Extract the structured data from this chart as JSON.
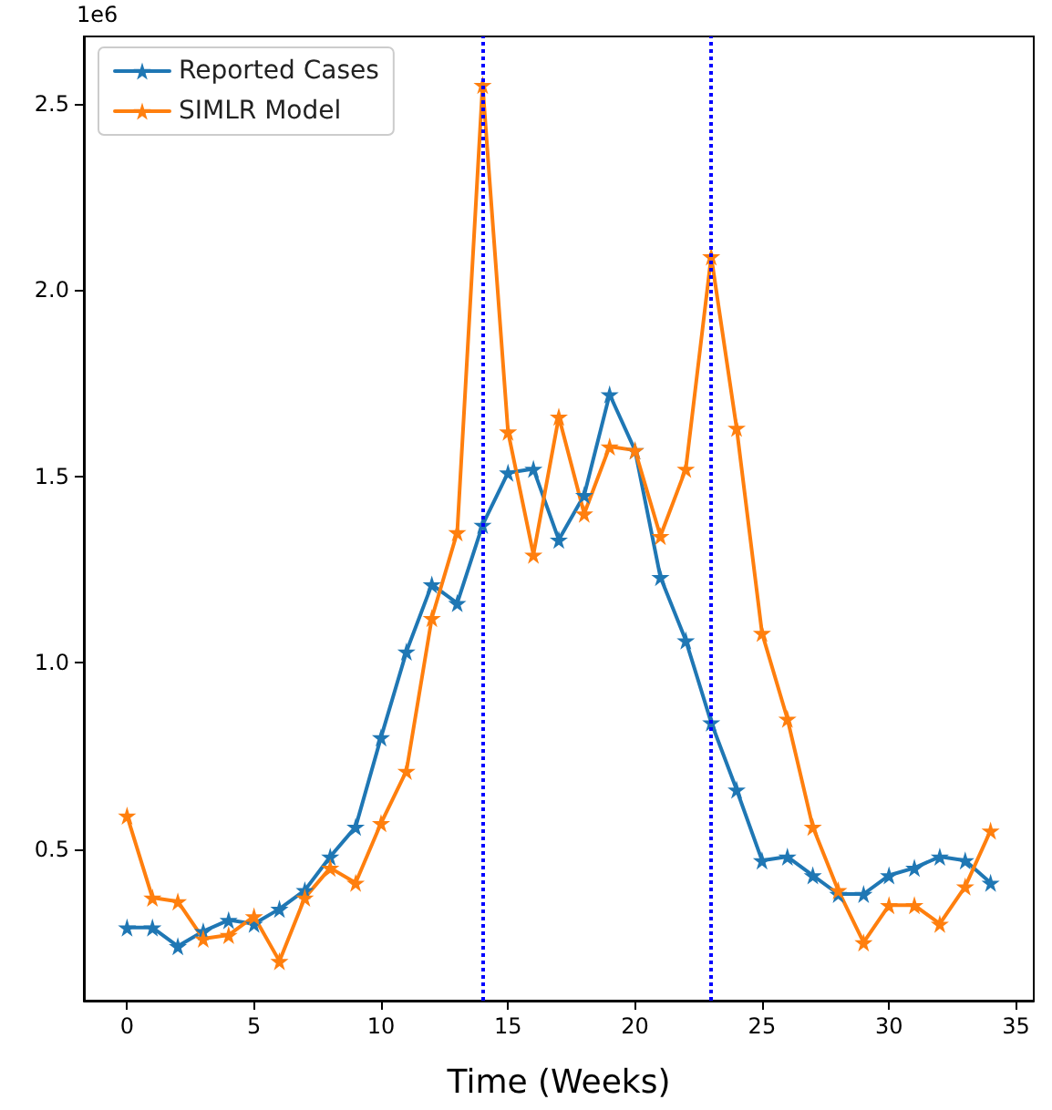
{
  "chart_data": {
    "type": "line",
    "xlabel": "Time (Weeks)",
    "annotations": [
      "1e6"
    ],
    "x": [
      0,
      1,
      2,
      3,
      4,
      5,
      6,
      7,
      8,
      9,
      10,
      11,
      12,
      13,
      14,
      15,
      16,
      17,
      18,
      19,
      20,
      21,
      22,
      23,
      24,
      25,
      26,
      27,
      28,
      29,
      30,
      31,
      32,
      33,
      34
    ],
    "series": [
      {
        "name": "Reported Cases",
        "color": "#1f77b4",
        "values": [
          0.29,
          0.29,
          0.24,
          0.28,
          0.31,
          0.3,
          0.34,
          0.39,
          0.48,
          0.56,
          0.8,
          1.03,
          1.21,
          1.16,
          1.37,
          1.51,
          1.52,
          1.33,
          1.45,
          1.72,
          1.57,
          1.23,
          1.06,
          0.84,
          0.66,
          0.47,
          0.48,
          0.43,
          0.38,
          0.38,
          0.43,
          0.45,
          0.48,
          0.47,
          0.41
        ]
      },
      {
        "name": "SIMLR Model",
        "color": "#ff7f0e",
        "values": [
          0.59,
          0.37,
          0.36,
          0.26,
          0.27,
          0.32,
          0.2,
          0.37,
          0.45,
          0.41,
          0.57,
          0.71,
          1.12,
          1.35,
          2.55,
          1.62,
          1.29,
          1.66,
          1.4,
          1.58,
          1.57,
          1.34,
          1.52,
          2.09,
          1.63,
          1.08,
          0.85,
          0.56,
          0.39,
          0.25,
          0.35,
          0.35,
          0.3,
          0.4,
          0.55
        ]
      }
    ],
    "xlim": [
      -1.7,
      35.7
    ],
    "xticks": [
      0,
      5,
      10,
      15,
      20,
      25,
      30,
      35
    ],
    "ylim": [
      0.094,
      2.68
    ],
    "yticks": [
      {
        "value": 0.5,
        "label": "0.5"
      },
      {
        "value": 1,
        "label": "1.0"
      },
      {
        "value": 1.5,
        "label": "1.5"
      },
      {
        "value": 2,
        "label": "2.0"
      },
      {
        "value": 2.5,
        "label": "2.5"
      }
    ],
    "ref_lines": [
      {
        "axis": "x",
        "value": 14,
        "color": "#0000ff",
        "line_style": "dotted"
      },
      {
        "axis": "x",
        "value": 23,
        "color": "#0000ff",
        "line_style": "dotted"
      }
    ],
    "legend": "top left",
    "marker": "star",
    "line_style": "solid",
    "grid": false
  }
}
